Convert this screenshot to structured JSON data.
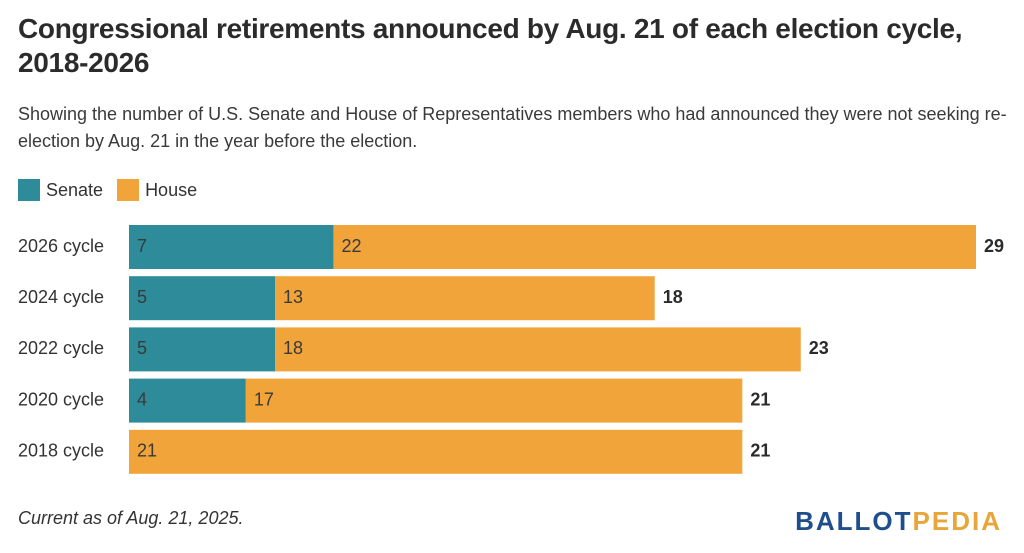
{
  "title": "Congressional retirements announced by Aug. 21 of each election cycle, 2018-2026",
  "subtitle": "Showing the number of U.S. Senate and House of Representatives members who had announced they were not seeking re-election by Aug. 21 in the year before the election.",
  "footnote": "Current as of Aug. 21, 2025.",
  "logo": {
    "part1": "BALLOT",
    "part2": "PEDIA",
    "part1_color": "#1f4e8c",
    "part2_color": "#e8a53a"
  },
  "legend": [
    {
      "name": "Senate",
      "color": "#2e8b99"
    },
    {
      "name": "House",
      "color": "#f0a43a"
    }
  ],
  "chart_data": {
    "type": "bar",
    "orientation": "horizontal",
    "stacked": true,
    "categories": [
      "2026 cycle",
      "2024 cycle",
      "2022 cycle",
      "2020 cycle",
      "2018 cycle"
    ],
    "series": [
      {
        "name": "Senate",
        "color": "#2e8b99",
        "values": [
          7,
          5,
          5,
          4,
          0
        ]
      },
      {
        "name": "House",
        "color": "#f0a43a",
        "values": [
          22,
          13,
          18,
          17,
          21
        ]
      }
    ],
    "totals": [
      29,
      18,
      23,
      21,
      21
    ],
    "xlim": [
      0,
      29
    ],
    "grid": false,
    "legend_position": "top-left"
  }
}
